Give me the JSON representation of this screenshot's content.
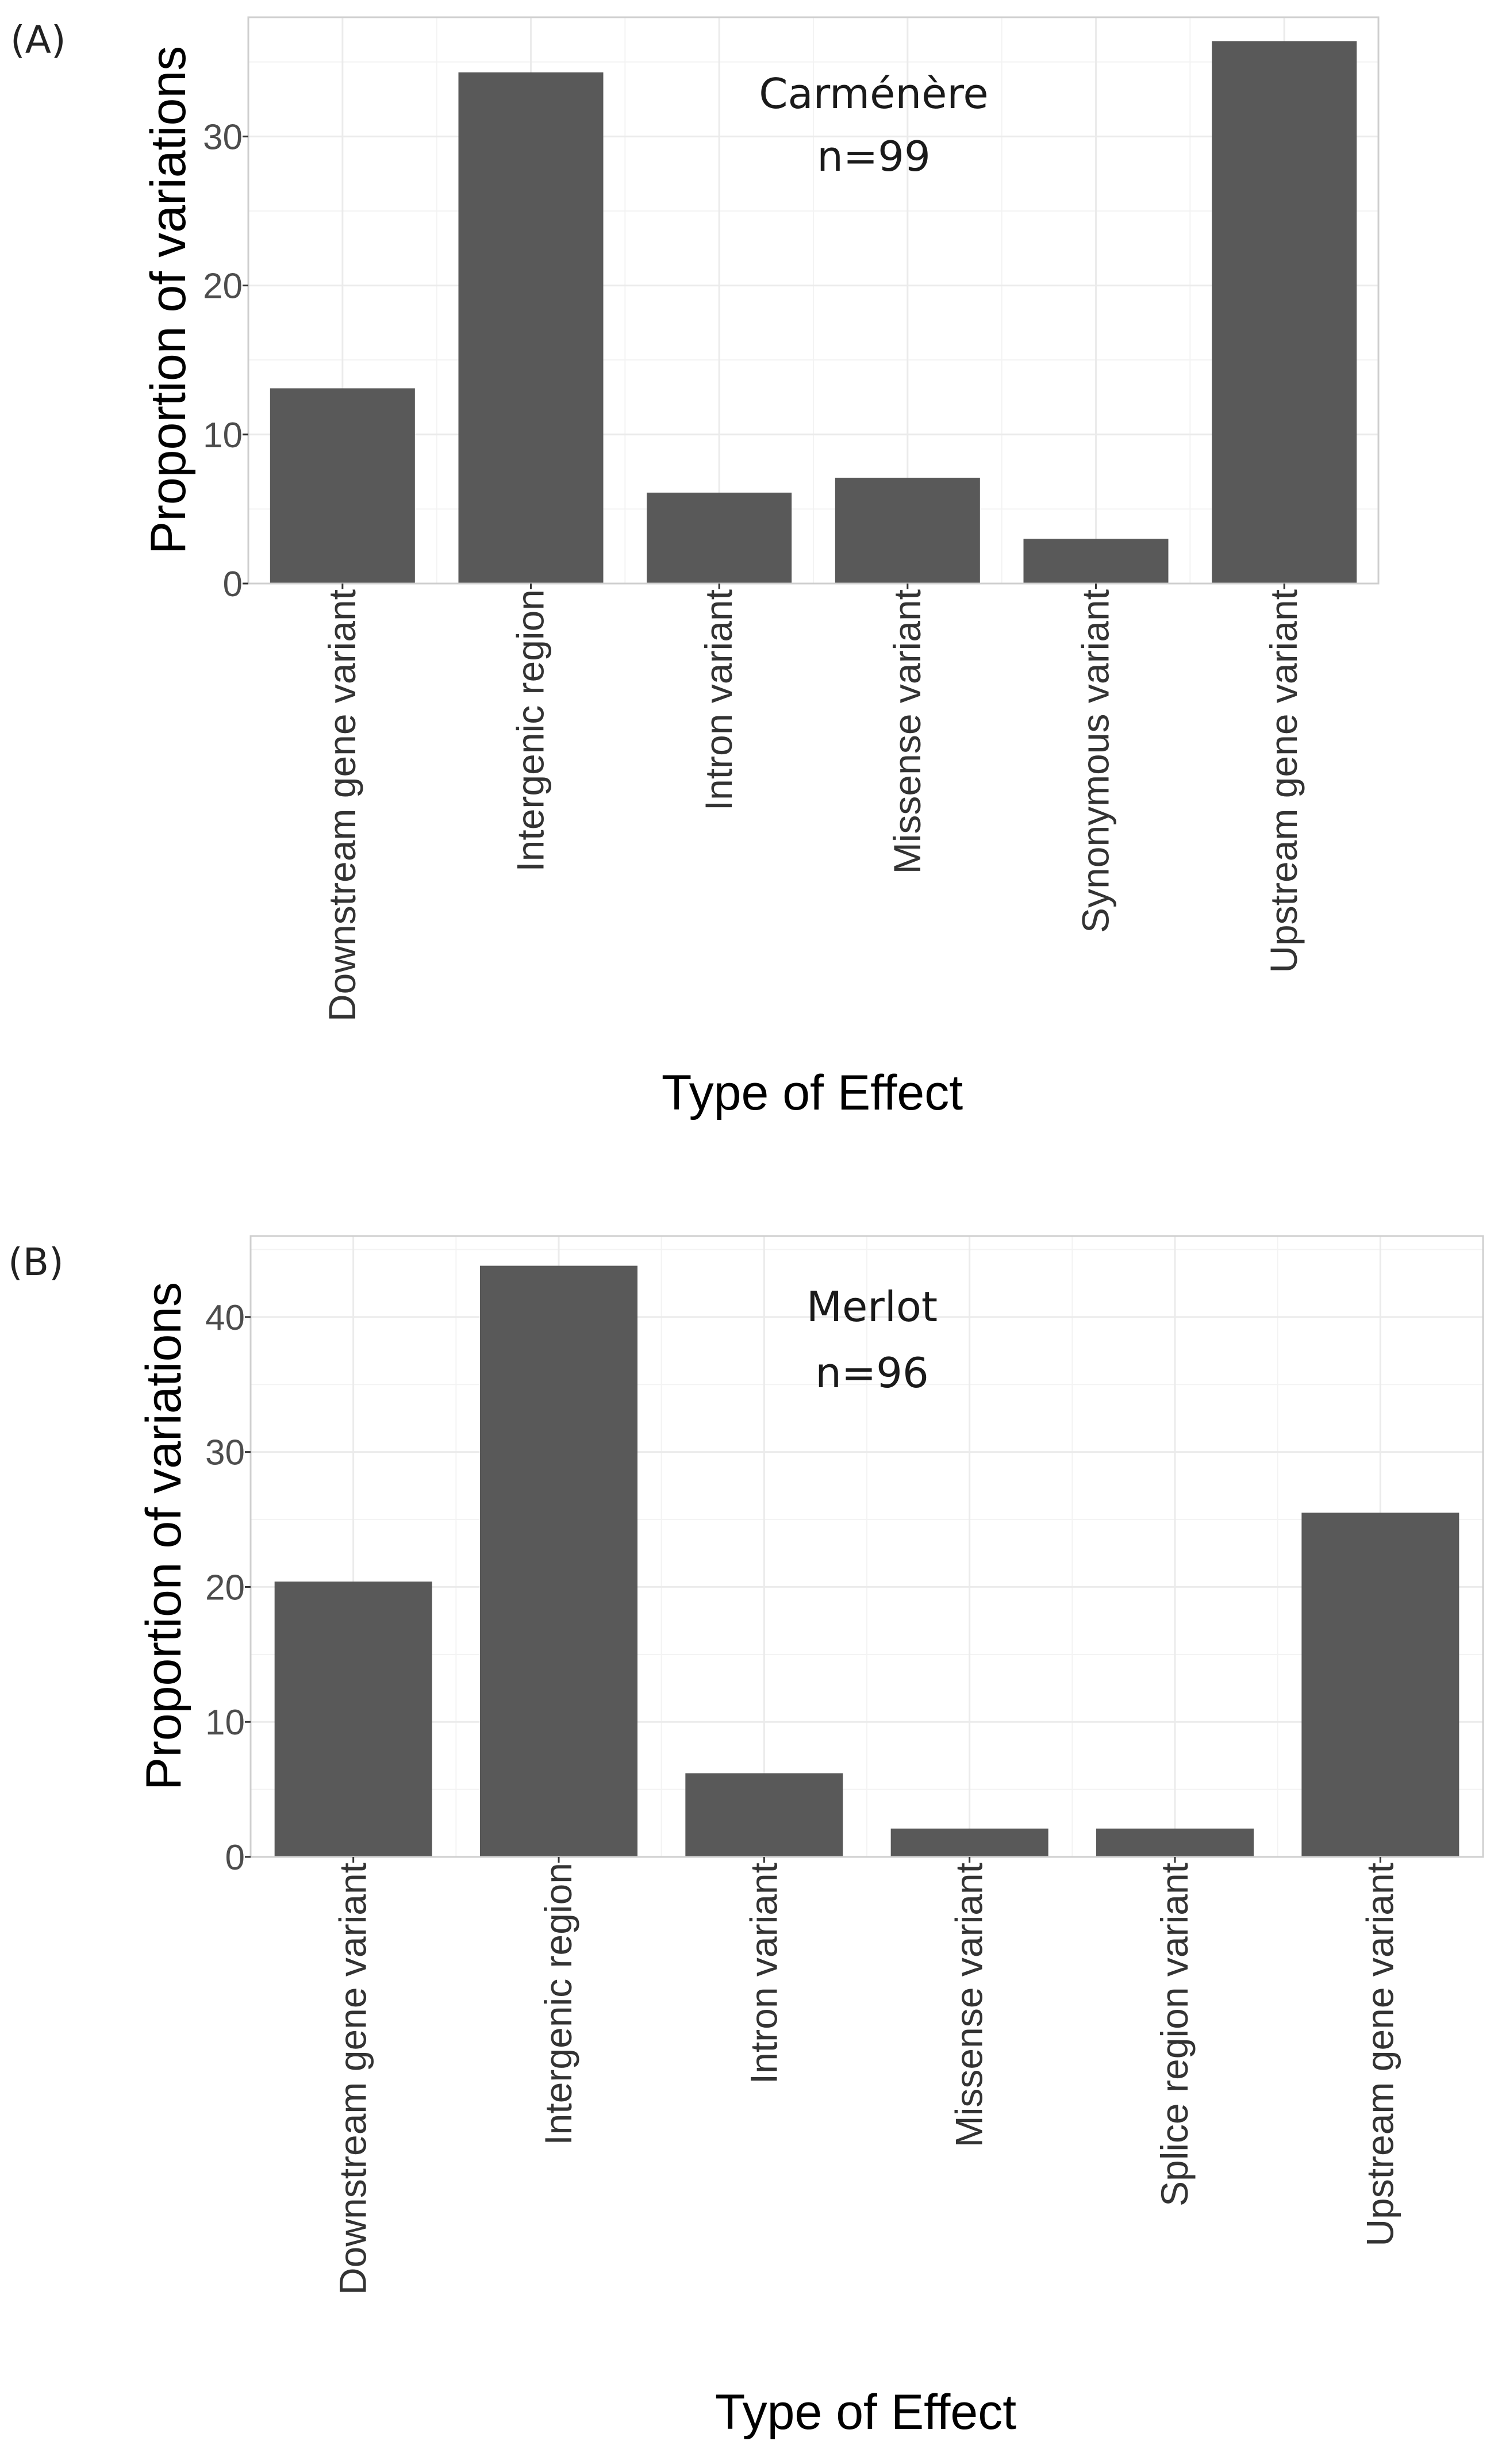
{
  "chart_data": [
    {
      "panel": "(A)",
      "type": "bar",
      "annotation": [
        "Carménère",
        "n=99"
      ],
      "categories": [
        "Downstream gene variant",
        "Intergenic region",
        "Intron variant",
        "Missense variant",
        "Synonymous variant",
        "Upstream gene variant"
      ],
      "values": [
        13.1,
        34.3,
        6.1,
        7.1,
        3.0,
        36.4
      ],
      "xlabel": "Type of Effect",
      "ylabel": "Proportion of variations",
      "yticks": [
        0,
        10,
        20,
        30
      ],
      "ylim": [
        0,
        38
      ],
      "bar_color": "#595959"
    },
    {
      "panel": "(B)",
      "type": "bar",
      "annotation": [
        "Merlot",
        "n=96"
      ],
      "categories": [
        "Downstream gene variant",
        "Intergenic region",
        "Intron variant",
        "Missense variant",
        "Splice region variant",
        "Upstream gene variant"
      ],
      "values": [
        20.4,
        43.8,
        6.2,
        2.1,
        2.1,
        25.5
      ],
      "xlabel": "Type of Effect",
      "ylabel": "Proportion of variations",
      "yticks": [
        0,
        10,
        20,
        30,
        40
      ],
      "ylim": [
        0,
        46
      ],
      "bar_color": "#595959"
    }
  ]
}
